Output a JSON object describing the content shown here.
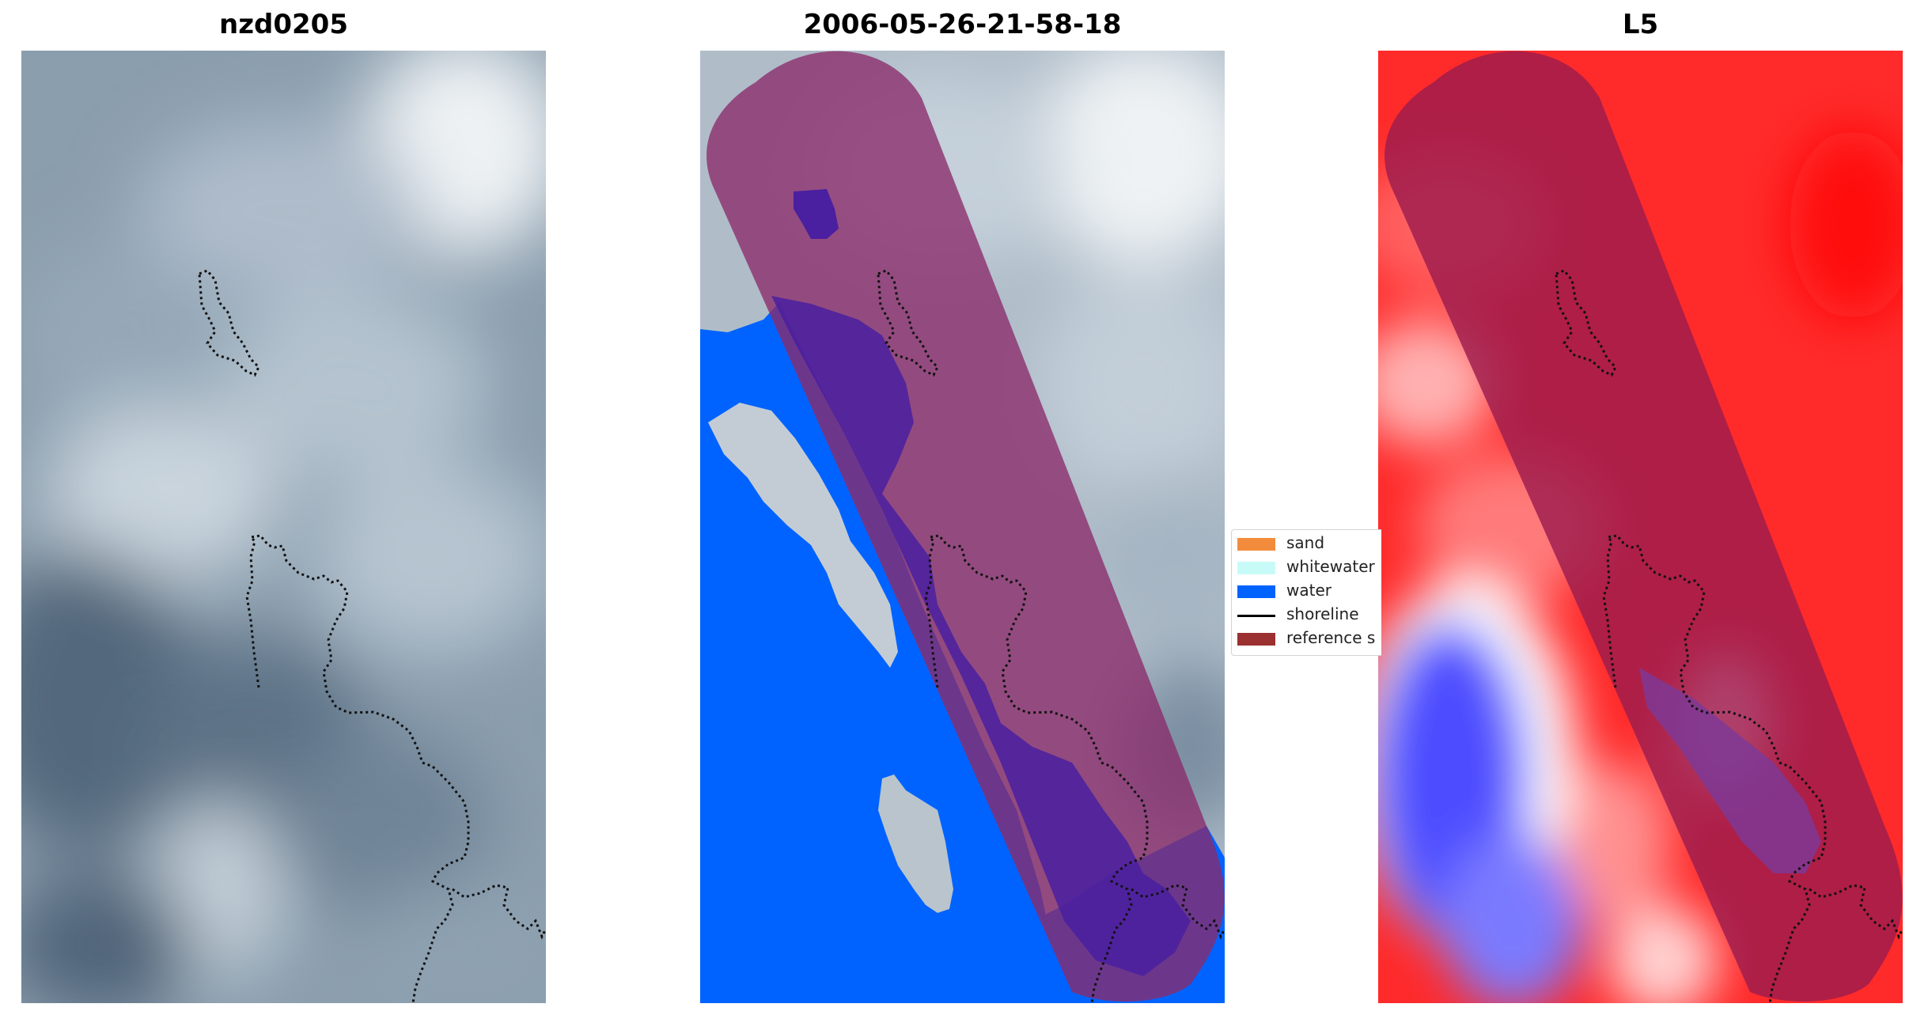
{
  "panels": [
    {
      "title": "nzd0205"
    },
    {
      "title": "2006-05-26-21-58-18"
    },
    {
      "title": "L5"
    }
  ],
  "legend": {
    "items": [
      {
        "label": "sand",
        "kind": "patch",
        "color": "#f28c3c"
      },
      {
        "label": "whitewater",
        "kind": "patch",
        "color": "#c8fbf7"
      },
      {
        "label": "water",
        "kind": "patch",
        "color": "#0063ff"
      },
      {
        "label": "shoreline",
        "kind": "line",
        "color": "#000000"
      },
      {
        "label": "reference s",
        "kind": "patch",
        "color": "#9b3030"
      }
    ]
  },
  "colors": {
    "cloud_dark": "#4e6478",
    "cloud_light": "#e8edf1",
    "buffer_overlay": "#8a2a6a",
    "water_class": "#0063ff",
    "index_high": "#ff1a1a",
    "index_low": "#1a1aff"
  }
}
